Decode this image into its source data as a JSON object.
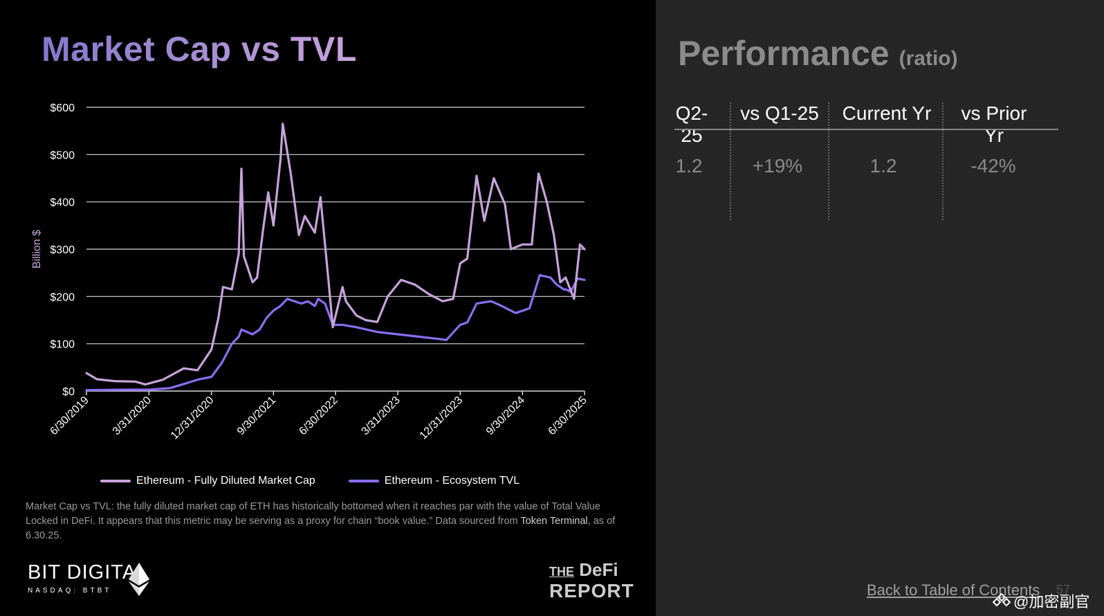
{
  "left": {
    "title": "Market Cap vs TVL",
    "legend": [
      "Ethereum - Fully Diluted Market Cap",
      "Ethereum - Ecosystem TVL"
    ],
    "note_parts": [
      "Market Cap vs TVL: the fully diluted market cap of ETH has historically bottomed when it reaches par with the value of Total Value Locked in DeFi. It appears that this metric may be serving as a proxy for chain “book value.” Data sourced from ",
      "Token Terminal",
      ", as of 6.30.25."
    ]
  },
  "logos": {
    "bit_digital": "BIT DIGITAL",
    "bit_digital_sub": "NASDAQ: BTBT",
    "defi_the": "THE",
    "defi_defi": "DeFi",
    "defi_report": "REPORT"
  },
  "right": {
    "title": "Performance",
    "subtitle": "(ratio)",
    "headers": [
      "Q2-25",
      "vs Q1-25",
      "Current Yr",
      "vs Prior Yr"
    ],
    "values": [
      "1.2",
      "+19%",
      "1.2",
      "-42%"
    ],
    "back_link": "Back to Table of Contents",
    "page_number": "57",
    "watermark": "@加密副官"
  },
  "colors": {
    "market_cap": "#c7a3dc",
    "tvl": "#8b6df0",
    "right_panel_bg": "#262626"
  },
  "chart_data": {
    "type": "line",
    "ylabel": "Billion $",
    "ylim": [
      0,
      600
    ],
    "yticks": [
      0,
      100,
      200,
      300,
      400,
      500,
      600
    ],
    "ytick_labels": [
      "$0",
      "$100",
      "$200",
      "$300",
      "$400",
      "$500",
      "$600"
    ],
    "xlim": [
      "2019-06-30",
      "2025-06-30"
    ],
    "xticks": [
      "2019-06-30",
      "2020-03-31",
      "2020-12-31",
      "2021-09-30",
      "2022-06-30",
      "2023-03-31",
      "2023-12-31",
      "2024-09-30",
      "2025-06-30"
    ],
    "xtick_labels": [
      "6/30/2019",
      "3/31/2020",
      "12/31/2020",
      "9/30/2021",
      "6/30/2022",
      "3/31/2023",
      "12/31/2023",
      "9/30/2024",
      "6/30/2025"
    ],
    "grid": true,
    "legend_position": "bottom",
    "series": [
      {
        "name": "Ethereum - Fully Diluted Market Cap",
        "color": "#c7a3dc",
        "x": [
          "2019-06-30",
          "2019-08-15",
          "2019-10-31",
          "2020-01-31",
          "2020-03-15",
          "2020-05-31",
          "2020-08-31",
          "2020-10-31",
          "2020-12-31",
          "2021-01-31",
          "2021-02-20",
          "2021-03-31",
          "2021-04-30",
          "2021-05-12",
          "2021-05-23",
          "2021-06-30",
          "2021-07-20",
          "2021-08-15",
          "2021-09-07",
          "2021-09-30",
          "2021-10-31",
          "2021-11-10",
          "2021-12-15",
          "2022-01-20",
          "2022-02-15",
          "2022-03-31",
          "2022-04-25",
          "2022-05-31",
          "2022-06-18",
          "2022-07-31",
          "2022-08-15",
          "2022-09-30",
          "2022-11-10",
          "2022-12-31",
          "2023-02-15",
          "2023-04-15",
          "2023-06-15",
          "2023-08-15",
          "2023-10-15",
          "2023-11-30",
          "2023-12-31",
          "2024-01-31",
          "2024-03-12",
          "2024-04-15",
          "2024-05-27",
          "2024-07-15",
          "2024-08-10",
          "2024-09-30",
          "2024-11-10",
          "2024-12-10",
          "2025-01-15",
          "2025-02-15",
          "2025-03-15",
          "2025-04-08",
          "2025-05-15",
          "2025-06-10",
          "2025-06-30"
        ],
        "values": [
          38,
          25,
          21,
          20,
          14,
          24,
          48,
          44,
          88,
          155,
          220,
          215,
          290,
          470,
          285,
          230,
          240,
          340,
          420,
          350,
          490,
          565,
          460,
          330,
          370,
          335,
          410,
          230,
          135,
          220,
          190,
          160,
          150,
          146,
          200,
          235,
          225,
          205,
          190,
          195,
          270,
          280,
          455,
          360,
          450,
          395,
          300,
          310,
          310,
          460,
          400,
          330,
          230,
          240,
          195,
          310,
          300
        ]
      },
      {
        "name": "Ethereum - Ecosystem TVL",
        "color": "#8b6df0",
        "x": [
          "2019-06-30",
          "2019-12-31",
          "2020-03-31",
          "2020-06-30",
          "2020-08-31",
          "2020-10-31",
          "2020-12-31",
          "2021-02-15",
          "2021-03-31",
          "2021-04-30",
          "2021-05-12",
          "2021-06-30",
          "2021-07-31",
          "2021-08-31",
          "2021-09-30",
          "2021-10-31",
          "2021-11-30",
          "2021-12-31",
          "2022-01-31",
          "2022-02-28",
          "2022-03-31",
          "2022-04-15",
          "2022-05-15",
          "2022-06-18",
          "2022-07-31",
          "2022-09-30",
          "2022-12-31",
          "2023-03-31",
          "2023-06-30",
          "2023-09-30",
          "2023-10-31",
          "2023-12-31",
          "2024-01-31",
          "2024-03-12",
          "2024-05-15",
          "2024-06-30",
          "2024-08-31",
          "2024-10-31",
          "2024-12-15",
          "2025-01-31",
          "2025-02-28",
          "2025-03-31",
          "2025-04-08",
          "2025-04-30",
          "2025-05-31",
          "2025-06-30"
        ],
        "values": [
          2,
          3,
          3,
          6,
          15,
          24,
          30,
          60,
          100,
          115,
          130,
          120,
          130,
          155,
          170,
          180,
          195,
          190,
          185,
          190,
          180,
          195,
          185,
          140,
          140,
          135,
          125,
          120,
          115,
          110,
          108,
          140,
          145,
          185,
          190,
          180,
          165,
          175,
          245,
          240,
          225,
          215,
          215,
          210,
          238,
          235
        ]
      }
    ]
  }
}
